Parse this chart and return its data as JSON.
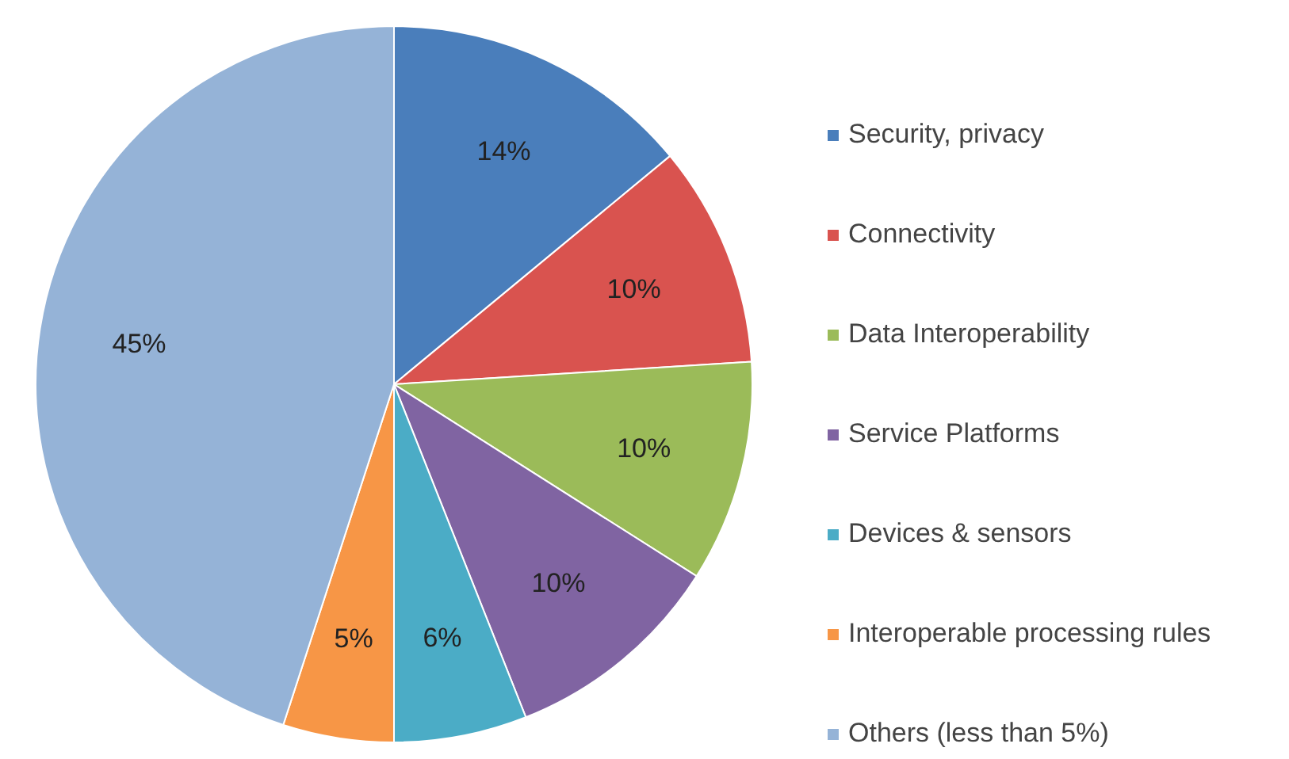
{
  "chart_data": {
    "type": "pie",
    "categories": [
      "Security, privacy",
      "Connectivity",
      "Data Interoperability",
      "Service Platforms",
      "Devices & sensors",
      "Interoperable processing rules",
      "Others (less than 5%)"
    ],
    "values": [
      14,
      10,
      10,
      10,
      6,
      5,
      45
    ],
    "value_labels": [
      "14%",
      "10%",
      "10%",
      "10%",
      "6%",
      "5%",
      "45%"
    ],
    "colors": [
      "#4a7ebb",
      "#d9534f",
      "#9bbb59",
      "#8064a2",
      "#4bacc6",
      "#f79646",
      "#95b3d7"
    ],
    "legend": "right"
  }
}
